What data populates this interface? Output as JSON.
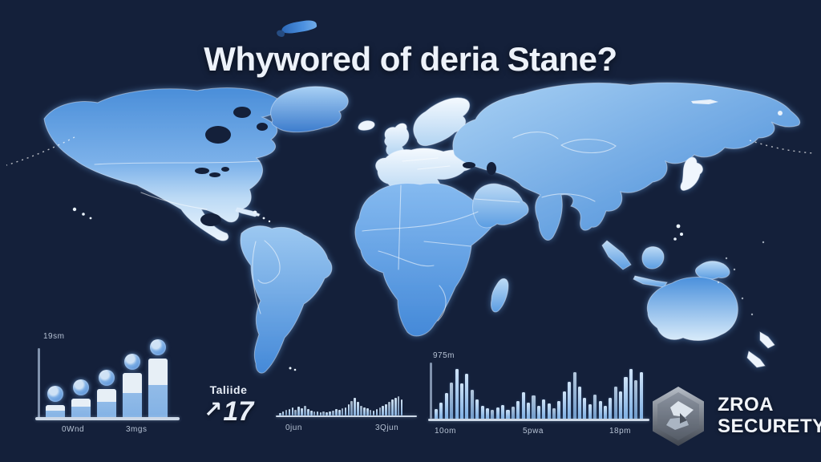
{
  "title": {
    "text": "Whywored of deria Stane?"
  },
  "brand": {
    "name_line1": "ZROA",
    "name_line2": "SECURETY",
    "icon": "hex-shield-icon"
  },
  "trend": {
    "label": "Taliide",
    "arrow": "↗",
    "value": "17"
  },
  "colors": {
    "background": "#14203a",
    "map_blue": "#4a90dc",
    "map_light": "#d8eafb",
    "bar_blue": "#8cb9e8",
    "bar_cap": "#e7eff6",
    "badge_blue": "#4f93dc",
    "label_gray": "#c3cfe0",
    "logo_gray": "#8b93a0"
  },
  "map": {
    "name": "world-map",
    "description": "blue gradient world map with white country borders on dark navy"
  },
  "chart_data": [
    {
      "type": "bar",
      "name": "stepped-bar-chart",
      "axis_label": "19sm",
      "x_labels": [
        "0Wnd",
        "3mgs"
      ],
      "values": [
        15,
        23,
        35,
        55,
        73
      ],
      "badges": true,
      "ylim": [
        0,
        100
      ],
      "grid": false
    },
    {
      "type": "bar",
      "name": "mini-histogram",
      "x_labels": [
        "0jun",
        "3Qjun"
      ],
      "values": [
        3,
        5,
        7,
        8,
        10,
        7,
        11,
        9,
        12,
        8,
        6,
        5,
        5,
        4,
        5,
        4,
        5,
        6,
        8,
        7,
        9,
        10,
        14,
        18,
        22,
        17,
        12,
        10,
        9,
        7,
        6,
        8,
        10,
        12,
        14,
        17,
        20,
        22,
        24,
        20
      ],
      "ylim": [
        0,
        30
      ],
      "grid": false
    },
    {
      "type": "bar",
      "name": "large-histogram",
      "axis_label": "975m",
      "x_labels": [
        "10om",
        "5pwa",
        "18pm"
      ],
      "values": [
        12,
        20,
        32,
        45,
        62,
        44,
        56,
        36,
        24,
        16,
        13,
        11,
        14,
        17,
        11,
        15,
        22,
        33,
        20,
        29,
        16,
        24,
        19,
        13,
        22,
        34,
        46,
        58,
        40,
        26,
        18,
        30,
        22,
        16,
        26,
        40,
        34,
        52,
        62,
        48,
        58
      ],
      "ylim": [
        0,
        70
      ],
      "grid": false
    }
  ]
}
